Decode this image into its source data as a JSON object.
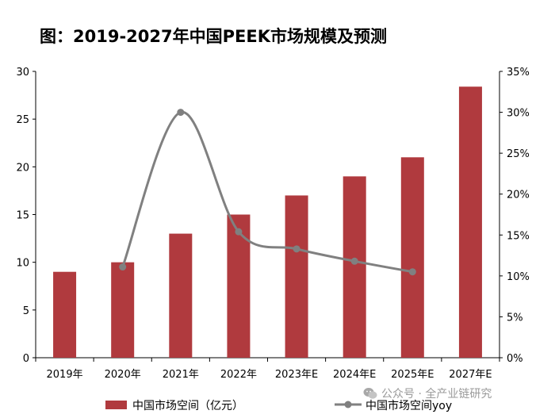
{
  "title": "图：2019-2027年中国PEEK市场规模及预测",
  "watermark": "公众号 · 全产业链研究",
  "colors": {
    "bar": "#B03A3E",
    "line": "#808080",
    "axis": "#000000"
  },
  "chart_data": {
    "type": "bar",
    "categories": [
      "2019年",
      "2020年",
      "2021年",
      "2022年",
      "2023年E",
      "2024年E",
      "2025年E",
      "2027年E"
    ],
    "series": [
      {
        "name": "中国市场空间（亿元）",
        "type": "bar",
        "axis": "left",
        "values": [
          9,
          10,
          13,
          15,
          17,
          19,
          21,
          28.4
        ]
      },
      {
        "name": "中国市场空间yoy",
        "type": "line",
        "axis": "right",
        "smooth": true,
        "values": [
          null,
          11.1,
          30,
          15.4,
          13.3,
          11.8,
          10.5,
          null
        ]
      }
    ],
    "y_left": {
      "min": 0,
      "max": 30,
      "ticks": [
        "0",
        "5",
        "10",
        "15",
        "20",
        "25",
        "30"
      ]
    },
    "y_right": {
      "min": 0,
      "max": 35,
      "unit": "%",
      "ticks": [
        "0%",
        "5%",
        "10%",
        "15%",
        "20%",
        "25%",
        "30%",
        "35%"
      ]
    },
    "legend_position": "bottom",
    "grid": false
  }
}
